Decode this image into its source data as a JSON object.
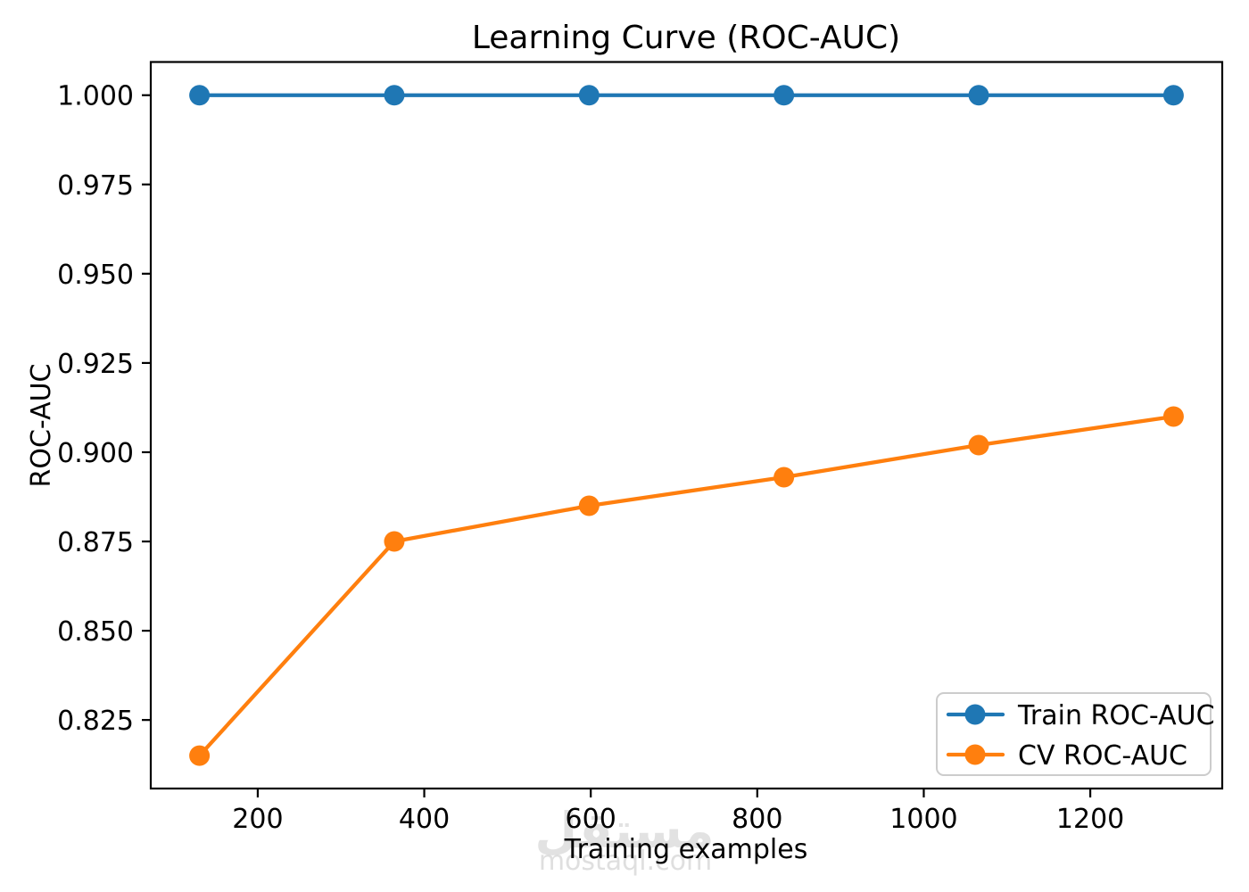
{
  "title": "Learning Curve (ROC-AUC)",
  "watermark": {
    "logo": "مستقل",
    "domain": "mostaql.com"
  },
  "chart_data": {
    "type": "line",
    "title": "Learning Curve (ROC-AUC)",
    "xlabel": "Training examples",
    "ylabel": "ROC-AUC",
    "x": [
      130,
      364,
      598,
      832,
      1066,
      1300
    ],
    "series": [
      {
        "name": "Train ROC-AUC",
        "color": "#1f77b4",
        "values": [
          1.0,
          1.0,
          1.0,
          1.0,
          1.0,
          1.0
        ]
      },
      {
        "name": "CV ROC-AUC",
        "color": "#ff7f0e",
        "values": [
          0.815,
          0.875,
          0.885,
          0.893,
          0.902,
          0.91
        ]
      }
    ],
    "xlim": [
      71.5,
      1358.5
    ],
    "ylim": [
      0.8058,
      1.0093
    ],
    "xticks": [
      200,
      400,
      600,
      800,
      1000,
      1200
    ],
    "xtick_labels": [
      "200",
      "400",
      "600",
      "800",
      "1000",
      "1200"
    ],
    "yticks": [
      0.825,
      0.85,
      0.875,
      0.9,
      0.925,
      0.95,
      0.975,
      1.0
    ],
    "ytick_labels": [
      "0.825",
      "0.850",
      "0.875",
      "0.900",
      "0.925",
      "0.950",
      "0.975",
      "1.000"
    ],
    "grid": false,
    "legend_position": "lower right",
    "marker": "o",
    "marker_radius": 11.5
  }
}
